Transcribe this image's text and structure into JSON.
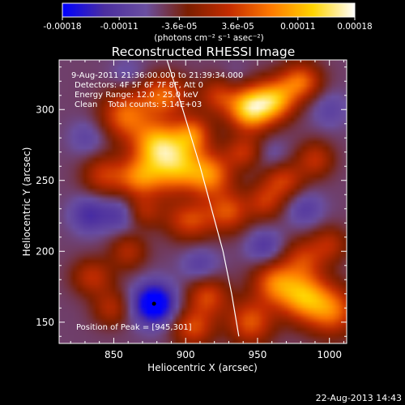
{
  "chart_data": {
    "type": "heatmap",
    "title": "Reconstructed RHESSI Image",
    "xlabel": "Heliocentric X (arcsec)",
    "ylabel": "Heliocentric Y (arcsec)",
    "xlim": [
      812,
      1012
    ],
    "ylim": [
      135,
      335
    ],
    "x_ticks": [
      850,
      900,
      950,
      1000
    ],
    "y_ticks": [
      150,
      200,
      250,
      300
    ],
    "colorbar": {
      "range": [
        -0.00018,
        0.00018
      ],
      "tick_values": [
        -0.00018,
        -0.00011,
        -3.6e-05,
        3.6e-05,
        0.00011,
        0.00018
      ],
      "tick_labels": [
        "-0.00018",
        "-0.00011",
        "-3.6e-05",
        "3.6e-05",
        "0.00011",
        "0.00018"
      ],
      "units_label": "(photons cm⁻² s⁻¹ asec⁻²)",
      "colormap": [
        "#0000ff",
        "#4b2ea0",
        "#6a4fa0",
        "#7a1e00",
        "#c42c00",
        "#ff7a00",
        "#ffd400",
        "#ffffff"
      ]
    },
    "annotations": [
      "9-Aug-2011 21:36:00.000 to 21:39:34.000",
      "Detectors: 4F 5F 6F 7F 8F, Att 0",
      "Energy Range: 12.0 - 25.0 keV",
      "Clean    Total counts: 5.14E+03"
    ],
    "peak_label": "Position of Peak = [945,301]",
    "limb_curve": {
      "name": "solar limb",
      "points": [
        [
          887,
          335
        ],
        [
          898,
          300
        ],
        [
          910,
          260
        ],
        [
          918,
          230
        ],
        [
          926,
          200
        ],
        [
          932,
          170
        ],
        [
          937,
          140
        ]
      ]
    },
    "sources": [
      {
        "x": 880,
        "y": 275,
        "value": 0.00014,
        "sx": 12,
        "sy": 12
      },
      {
        "x": 895,
        "y": 260,
        "value": 0.00012,
        "sx": 12,
        "sy": 14
      },
      {
        "x": 868,
        "y": 252,
        "value": 0.00011,
        "sx": 12,
        "sy": 10
      },
      {
        "x": 858,
        "y": 296,
        "value": 0.0001,
        "sx": 12,
        "sy": 12
      },
      {
        "x": 885,
        "y": 310,
        "value": 0.0001,
        "sx": 12,
        "sy": 10
      },
      {
        "x": 905,
        "y": 283,
        "value": 9e-05,
        "sx": 9,
        "sy": 9
      },
      {
        "x": 917,
        "y": 254,
        "value": 0.00011,
        "sx": 11,
        "sy": 11
      },
      {
        "x": 930,
        "y": 228,
        "value": 8e-05,
        "sx": 10,
        "sy": 10
      },
      {
        "x": 903,
        "y": 222,
        "value": 8e-05,
        "sx": 12,
        "sy": 10
      },
      {
        "x": 842,
        "y": 254,
        "value": 6e-05,
        "sx": 10,
        "sy": 10
      },
      {
        "x": 945,
        "y": 301,
        "value": 0.00018,
        "sx": 11,
        "sy": 11
      },
      {
        "x": 963,
        "y": 307,
        "value": 0.00012,
        "sx": 10,
        "sy": 10
      },
      {
        "x": 980,
        "y": 320,
        "value": 0.0001,
        "sx": 10,
        "sy": 9
      },
      {
        "x": 940,
        "y": 270,
        "value": 6e-05,
        "sx": 9,
        "sy": 8
      },
      {
        "x": 955,
        "y": 235,
        "value": 6e-05,
        "sx": 9,
        "sy": 9
      },
      {
        "x": 968,
        "y": 250,
        "value": 7e-05,
        "sx": 10,
        "sy": 9
      },
      {
        "x": 990,
        "y": 265,
        "value": 6e-05,
        "sx": 9,
        "sy": 9
      },
      {
        "x": 1000,
        "y": 205,
        "value": 5e-05,
        "sx": 9,
        "sy": 9
      },
      {
        "x": 982,
        "y": 195,
        "value": 6e-05,
        "sx": 10,
        "sy": 10
      },
      {
        "x": 962,
        "y": 178,
        "value": 0.0001,
        "sx": 11,
        "sy": 11
      },
      {
        "x": 982,
        "y": 168,
        "value": 0.00013,
        "sx": 12,
        "sy": 12
      },
      {
        "x": 1002,
        "y": 158,
        "value": 0.0001,
        "sx": 12,
        "sy": 12
      },
      {
        "x": 945,
        "y": 150,
        "value": 9e-05,
        "sx": 11,
        "sy": 11
      },
      {
        "x": 915,
        "y": 168,
        "value": 8e-05,
        "sx": 10,
        "sy": 10
      },
      {
        "x": 905,
        "y": 146,
        "value": 8e-05,
        "sx": 10,
        "sy": 9
      },
      {
        "x": 835,
        "y": 182,
        "value": 6e-05,
        "sx": 10,
        "sy": 9
      },
      {
        "x": 860,
        "y": 200,
        "value": 5e-05,
        "sx": 9,
        "sy": 9
      },
      {
        "x": 848,
        "y": 160,
        "value": 5e-05,
        "sx": 9,
        "sy": 9
      },
      {
        "x": 922,
        "y": 310,
        "value": 6e-05,
        "sx": 9,
        "sy": 9
      },
      {
        "x": 870,
        "y": 228,
        "value": 5e-05,
        "sx": 9,
        "sy": 8
      },
      {
        "x": 878,
        "y": 163,
        "value": -0.00018,
        "sx": 10,
        "sy": 10
      },
      {
        "x": 855,
        "y": 226,
        "value": -8e-05,
        "sx": 9,
        "sy": 9
      },
      {
        "x": 833,
        "y": 226,
        "value": -9e-05,
        "sx": 9,
        "sy": 9
      },
      {
        "x": 832,
        "y": 280,
        "value": -6e-05,
        "sx": 9,
        "sy": 9
      },
      {
        "x": 910,
        "y": 190,
        "value": -7e-05,
        "sx": 9,
        "sy": 9
      },
      {
        "x": 955,
        "y": 203,
        "value": -8e-05,
        "sx": 9,
        "sy": 9
      },
      {
        "x": 983,
        "y": 230,
        "value": -7e-05,
        "sx": 9,
        "sy": 9
      },
      {
        "x": 1000,
        "y": 300,
        "value": -6e-05,
        "sx": 9,
        "sy": 9
      },
      {
        "x": 960,
        "y": 268,
        "value": -5e-05,
        "sx": 8,
        "sy": 8
      },
      {
        "x": 860,
        "y": 325,
        "value": -5e-05,
        "sx": 9,
        "sy": 8
      },
      {
        "x": 900,
        "y": 238,
        "value": -4e-05,
        "sx": 7,
        "sy": 7
      },
      {
        "x": 935,
        "y": 322,
        "value": -4e-05,
        "sx": 8,
        "sy": 8
      }
    ]
  },
  "footer": {
    "timestamp": "22-Aug-2013 14:43"
  }
}
